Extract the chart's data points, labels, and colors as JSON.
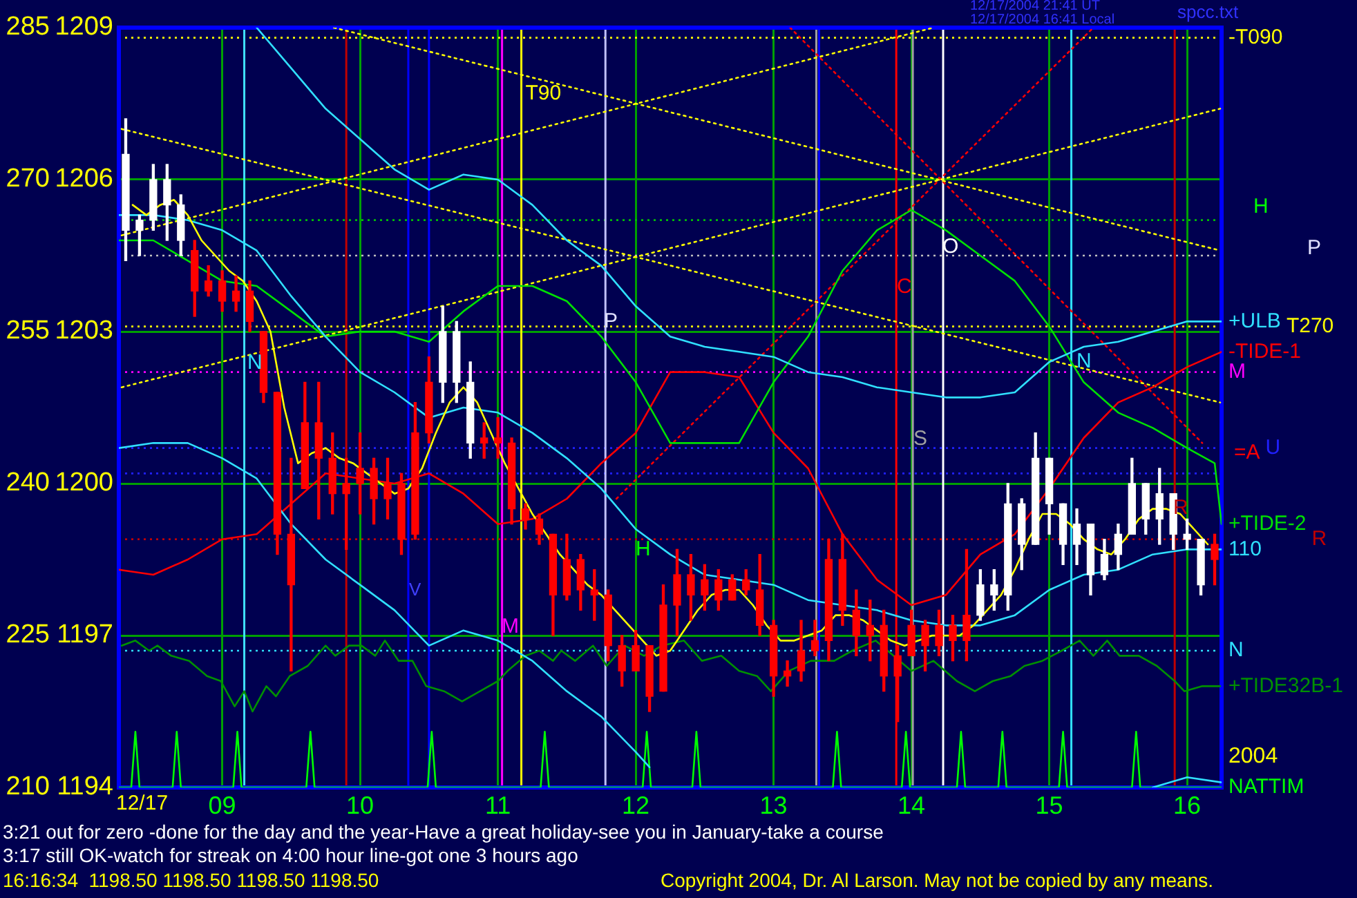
{
  "chart_data": {
    "type": "candlestick",
    "x": [
      8.3,
      8.4,
      8.5,
      8.6,
      8.7,
      8.8,
      8.9,
      9.0,
      9.1,
      9.2,
      9.3,
      9.4,
      9.5,
      9.6,
      9.7,
      9.8,
      9.9,
      10.0,
      10.1,
      10.2,
      10.3,
      10.4,
      10.5,
      10.6,
      10.7,
      10.8,
      10.9,
      11.0,
      11.1,
      11.2,
      11.3,
      11.4,
      11.5,
      11.6,
      11.7,
      11.8,
      11.9,
      12.0,
      12.1,
      12.2,
      12.3,
      12.4,
      12.5,
      12.6,
      12.7,
      12.8,
      12.9,
      13.0,
      13.1,
      13.2,
      13.3,
      13.4,
      13.5,
      13.6,
      13.7,
      13.8,
      13.9,
      14.0,
      14.1,
      14.2,
      14.3,
      14.4,
      14.5,
      14.6,
      14.7,
      14.8,
      14.9,
      15.0,
      15.1,
      15.2,
      15.3,
      15.4,
      15.5,
      15.6,
      15.7,
      15.8,
      15.9,
      16.0,
      16.1,
      16.2
    ],
    "ohlc": [
      [
        1205.0,
        1207.2,
        1204.4,
        1206.5
      ],
      [
        1205.0,
        1205.3,
        1204.5,
        1205.2
      ],
      [
        1205.2,
        1206.3,
        1205.0,
        1206.0
      ],
      [
        1205.5,
        1206.3,
        1204.8,
        1206.0
      ],
      [
        1204.8,
        1205.7,
        1204.5,
        1205.5
      ],
      [
        1204.6,
        1204.8,
        1203.3,
        1203.8
      ],
      [
        1204.0,
        1204.3,
        1203.7,
        1203.8
      ],
      [
        1204.0,
        1204.2,
        1203.4,
        1203.6
      ],
      [
        1203.8,
        1204.1,
        1203.4,
        1203.6
      ],
      [
        1203.8,
        1204.0,
        1203.0,
        1203.2
      ],
      [
        1203.0,
        1203.0,
        1201.6,
        1201.8
      ],
      [
        1201.8,
        1201.8,
        1198.6,
        1199.0
      ],
      [
        1199.0,
        1200.5,
        1196.3,
        1198.0
      ],
      [
        1201.2,
        1202.0,
        1199.9,
        1199.9
      ],
      [
        1201.2,
        1202.0,
        1199.3,
        1200.5
      ],
      [
        1200.5,
        1201.0,
        1199.4,
        1199.8
      ],
      [
        1200.0,
        1200.5,
        1198.7,
        1199.8
      ],
      [
        1200.3,
        1201.0,
        1199.4,
        1200.0
      ],
      [
        1200.3,
        1200.5,
        1199.2,
        1199.7
      ],
      [
        1200.0,
        1200.5,
        1199.3,
        1199.7
      ],
      [
        1200.0,
        1200.2,
        1198.6,
        1198.9
      ],
      [
        1201.0,
        1201.6,
        1198.9,
        1199.0
      ],
      [
        1202.0,
        1202.5,
        1200.8,
        1201.0
      ],
      [
        1202.0,
        1203.5,
        1201.6,
        1203.0
      ],
      [
        1202.0,
        1203.2,
        1201.6,
        1203.0
      ],
      [
        1200.8,
        1202.4,
        1200.5,
        1202.0
      ],
      [
        1200.9,
        1201.2,
        1200.5,
        1200.8
      ],
      [
        1200.9,
        1201.3,
        1200.5,
        1200.8
      ],
      [
        1200.8,
        1200.9,
        1199.2,
        1199.5
      ],
      [
        1199.5,
        1199.6,
        1199.1,
        1199.3
      ],
      [
        1199.3,
        1199.4,
        1198.8,
        1199.0
      ],
      [
        1199.0,
        1199.0,
        1197.0,
        1197.8
      ],
      [
        1198.5,
        1199.0,
        1197.7,
        1197.8
      ],
      [
        1198.5,
        1198.6,
        1197.5,
        1197.9
      ],
      [
        1197.9,
        1198.3,
        1197.3,
        1197.8
      ],
      [
        1197.8,
        1197.9,
        1196.5,
        1196.8
      ],
      [
        1196.8,
        1197.0,
        1196.0,
        1196.3
      ],
      [
        1196.8,
        1197.1,
        1196.3,
        1196.3
      ],
      [
        1196.8,
        1196.8,
        1195.5,
        1195.8
      ],
      [
        1197.6,
        1198.0,
        1195.9,
        1195.9
      ],
      [
        1198.2,
        1198.7,
        1197.0,
        1197.6
      ],
      [
        1198.2,
        1198.6,
        1197.3,
        1197.8
      ],
      [
        1198.1,
        1198.4,
        1197.5,
        1197.8
      ],
      [
        1198.1,
        1198.3,
        1197.5,
        1197.7
      ],
      [
        1198.1,
        1198.2,
        1197.7,
        1197.7
      ],
      [
        1198.1,
        1198.3,
        1197.8,
        1197.9
      ],
      [
        1197.9,
        1198.6,
        1197.0,
        1197.2
      ],
      [
        1197.2,
        1197.3,
        1195.8,
        1196.2
      ],
      [
        1196.3,
        1196.5,
        1196.0,
        1196.2
      ],
      [
        1196.7,
        1197.3,
        1196.1,
        1196.3
      ],
      [
        1196.9,
        1197.3,
        1196.6,
        1196.7
      ],
      [
        1198.5,
        1198.9,
        1196.5,
        1196.9
      ],
      [
        1198.5,
        1199.0,
        1197.2,
        1197.5
      ],
      [
        1197.5,
        1197.9,
        1196.6,
        1197.0
      ],
      [
        1197.2,
        1197.7,
        1196.5,
        1197.0
      ],
      [
        1197.2,
        1197.5,
        1195.9,
        1196.2
      ],
      [
        1196.6,
        1196.8,
        1195.3,
        1196.2
      ],
      [
        1197.2,
        1197.5,
        1196.6,
        1196.6
      ],
      [
        1197.2,
        1197.3,
        1196.3,
        1196.8
      ],
      [
        1197.2,
        1197.5,
        1196.6,
        1196.8
      ],
      [
        1197.2,
        1197.4,
        1196.5,
        1196.9
      ],
      [
        1197.4,
        1198.7,
        1196.5,
        1196.9
      ],
      [
        1197.4,
        1198.3,
        1197.3,
        1198.0
      ],
      [
        1197.8,
        1198.3,
        1197.5,
        1198.0
      ],
      [
        1197.8,
        1200.0,
        1197.5,
        1199.6
      ],
      [
        1198.8,
        1199.7,
        1198.3,
        1199.6
      ],
      [
        1198.8,
        1201.0,
        1198.8,
        1200.5
      ],
      [
        1199.6,
        1200.5,
        1199.0,
        1200.5
      ],
      [
        1198.8,
        1199.6,
        1198.4,
        1199.6
      ],
      [
        1198.8,
        1199.5,
        1198.4,
        1199.2
      ],
      [
        1198.2,
        1199.2,
        1197.8,
        1199.2
      ],
      [
        1198.2,
        1198.9,
        1198.1,
        1198.6
      ],
      [
        1198.6,
        1199.2,
        1198.3,
        1199.0
      ],
      [
        1199.0,
        1200.5,
        1199.0,
        1200.0
      ],
      [
        1199.3,
        1200.0,
        1199.0,
        1200.0
      ],
      [
        1199.3,
        1200.3,
        1198.8,
        1199.8
      ],
      [
        1199.0,
        1199.8,
        1198.7,
        1199.8
      ],
      [
        1198.9,
        1199.3,
        1198.7,
        1199.0
      ],
      [
        1198.0,
        1198.9,
        1197.8,
        1198.9
      ],
      [
        1198.8,
        1199.0,
        1198.0,
        1198.5
      ]
    ],
    "colors": [
      "#ffffff",
      "#ffffff",
      "#ffffff",
      "#ffffff",
      "#ffffff",
      "#ff0000",
      "#ff0000",
      "#ff0000",
      "#ff0000",
      "#ff0000",
      "#ff0000",
      "#ff0000",
      "#ff0000",
      "#ff0000",
      "#ff0000",
      "#ff0000",
      "#ff0000",
      "#ff0000",
      "#ff0000",
      "#ff0000",
      "#ff0000",
      "#ff0000",
      "#ff0000",
      "#ffffff",
      "#ffffff",
      "#ffffff",
      "#ff0000",
      "#ff0000",
      "#ff0000",
      "#ff0000",
      "#ff0000",
      "#ff0000",
      "#ff0000",
      "#ff0000",
      "#ff0000",
      "#ff0000",
      "#ff0000",
      "#ff0000",
      "#ff0000",
      "#ff0000",
      "#ff0000",
      "#ff0000",
      "#ff0000",
      "#ff0000",
      "#ff0000",
      "#ff0000",
      "#ff0000",
      "#ff0000",
      "#ff0000",
      "#ff0000",
      "#ff0000",
      "#ff0000",
      "#ff0000",
      "#ff0000",
      "#ff0000",
      "#ff0000",
      "#ff0000",
      "#ff0000",
      "#ff0000",
      "#ff0000",
      "#ff0000",
      "#ff0000",
      "#ffffff",
      "#ffffff",
      "#ffffff",
      "#ffffff",
      "#ffffff",
      "#ffffff",
      "#ffffff",
      "#ffffff",
      "#ffffff",
      "#ffffff",
      "#ffffff",
      "#ffffff",
      "#ffffff",
      "#ffffff",
      "#ffffff",
      "#ffffff",
      "#ffffff",
      "#ff0000"
    ],
    "series": [
      {
        "type": "line",
        "color": "#ffff00",
        "x": [
          8.35,
          8.45,
          8.55,
          8.65,
          8.75,
          8.85,
          8.95,
          9.05,
          9.15,
          9.25,
          9.35,
          9.45,
          9.55,
          9.65,
          9.75,
          9.85,
          9.95,
          10.05,
          10.15,
          10.25,
          10.35,
          10.45,
          10.55,
          10.65,
          10.75,
          10.85,
          10.95,
          11.05,
          11.15,
          11.25,
          11.35,
          11.45,
          11.55,
          11.65,
          11.75,
          11.85,
          11.95,
          12.05,
          12.15,
          12.25,
          12.35,
          12.45,
          12.55,
          12.65,
          12.75,
          12.85,
          12.95,
          13.05,
          13.15,
          13.25,
          13.35,
          13.45,
          13.55,
          13.65,
          13.75,
          13.85,
          13.95,
          14.05,
          14.15,
          14.25,
          14.35,
          14.45,
          14.55,
          14.65,
          14.75,
          14.85,
          14.95,
          15.05,
          15.15,
          15.25,
          15.35,
          15.45,
          15.55,
          15.65,
          15.75,
          15.85,
          15.95,
          16.05,
          16.15
        ],
        "values": [
          1205.5,
          1205.3,
          1205.5,
          1205.6,
          1205.3,
          1204.8,
          1204.5,
          1204.2,
          1204.0,
          1203.6,
          1203.0,
          1201.5,
          1200.4,
          1200.6,
          1200.7,
          1200.5,
          1200.4,
          1200.2,
          1200.0,
          1199.8,
          1199.9,
          1200.3,
          1201.0,
          1201.6,
          1201.9,
          1201.6,
          1201.0,
          1200.4,
          1199.9,
          1199.4,
          1199.0,
          1198.6,
          1198.3,
          1198.0,
          1197.8,
          1197.5,
          1197.2,
          1196.9,
          1196.6,
          1196.7,
          1197.1,
          1197.5,
          1197.8,
          1197.9,
          1197.9,
          1197.6,
          1197.2,
          1196.9,
          1196.9,
          1197.0,
          1197.1,
          1197.4,
          1197.4,
          1197.3,
          1197.1,
          1196.9,
          1196.8,
          1196.9,
          1197.0,
          1197.0,
          1197.0,
          1197.2,
          1197.5,
          1197.8,
          1198.3,
          1198.9,
          1199.4,
          1199.4,
          1199.2,
          1198.9,
          1198.7,
          1198.6,
          1198.9,
          1199.3,
          1199.5,
          1199.5,
          1199.4,
          1199.1,
          1198.8
        ]
      },
      {
        "type": "line",
        "name": "+ULB",
        "color": "#30e0ff",
        "x": [
          9.25,
          9.5,
          9.75,
          10.0,
          10.25,
          10.5,
          10.75,
          11.0,
          11.25,
          11.5,
          11.75,
          12.0,
          12.25,
          12.5,
          12.75,
          13.0,
          13.25,
          13.5,
          13.75,
          14.0,
          14.25,
          14.5,
          14.75,
          15.0,
          15.25,
          15.5,
          15.75,
          16.0,
          16.25
        ],
        "values": [
          1209.0,
          1208.2,
          1207.4,
          1206.8,
          1206.2,
          1205.8,
          1206.1,
          1206.0,
          1205.5,
          1204.8,
          1204.3,
          1203.5,
          1202.9,
          1202.7,
          1202.6,
          1202.5,
          1202.2,
          1202.1,
          1201.9,
          1201.8,
          1201.7,
          1201.7,
          1201.8,
          1202.4,
          1202.7,
          1202.8,
          1203.0,
          1203.2,
          1203.2
        ]
      },
      {
        "type": "line",
        "name": "110",
        "color": "#30e0ff",
        "x": [
          8.25,
          8.5,
          8.75,
          9.0,
          9.25,
          9.5,
          9.75,
          10.0,
          10.25,
          10.5,
          10.75,
          11.0,
          11.25,
          11.5,
          11.75,
          12.0,
          12.25,
          12.5,
          12.75,
          13.0,
          13.25,
          13.5,
          13.75,
          14.0,
          14.25,
          14.5,
          14.75,
          15.0,
          15.25,
          15.5,
          15.75,
          16.0,
          16.25
        ],
        "values": [
          1205.3,
          1205.3,
          1205.2,
          1205.0,
          1204.6,
          1203.7,
          1202.9,
          1202.2,
          1201.8,
          1201.3,
          1201.5,
          1201.4,
          1201.0,
          1200.5,
          1199.9,
          1199.1,
          1198.6,
          1198.2,
          1198.1,
          1198.0,
          1197.7,
          1197.6,
          1197.5,
          1197.3,
          1197.2,
          1197.2,
          1197.4,
          1197.9,
          1198.2,
          1198.3,
          1198.6,
          1198.7,
          1198.7
        ]
      },
      {
        "type": "line",
        "color": "#30e0ff",
        "x": [
          8.25,
          8.5,
          8.75,
          9.0,
          9.25,
          9.5,
          9.75,
          10.0,
          10.25,
          10.5,
          10.75,
          11.0,
          11.25,
          11.5,
          11.75,
          12.0,
          12.1,
          12.2,
          15.75,
          16.0,
          16.25
        ],
        "values": [
          1200.7,
          1200.8,
          1200.8,
          1200.5,
          1200.1,
          1199.2,
          1198.5,
          1198.0,
          1197.5,
          1196.8,
          1197.1,
          1196.9,
          1196.5,
          1195.9,
          1195.4,
          1194.7,
          1194.4,
          null,
          1194.0,
          1194.2,
          1194.1
        ]
      },
      {
        "type": "line",
        "name": "+TIDE-2",
        "color": "#00e000",
        "x": [
          8.25,
          8.5,
          8.75,
          9.0,
          9.25,
          9.5,
          9.75,
          10.0,
          10.25,
          10.5,
          10.75,
          11.0,
          11.25,
          11.5,
          11.75,
          12.0,
          12.25,
          12.5,
          12.75,
          13.0,
          13.25,
          13.5,
          13.75,
          14.0,
          14.25,
          14.5,
          14.75,
          15.0,
          15.25,
          15.5,
          15.75,
          16.0,
          16.2,
          16.25
        ],
        "values": [
          1204.8,
          1204.8,
          1204.4,
          1204.0,
          1203.9,
          1203.4,
          1202.9,
          1203.0,
          1203.0,
          1202.8,
          1203.4,
          1203.9,
          1203.9,
          1203.6,
          1202.9,
          1202.0,
          1200.8,
          1200.8,
          1200.8,
          1202.0,
          1202.9,
          1204.2,
          1205.0,
          1205.4,
          1205.0,
          1204.5,
          1204.0,
          1203.1,
          1202.0,
          1201.4,
          1201.1,
          1200.7,
          1200.4,
          1199.2
        ]
      },
      {
        "type": "line",
        "name": "-TIDE-1",
        "color": "#ff0000",
        "x": [
          8.25,
          8.5,
          8.75,
          9.0,
          9.25,
          9.5,
          9.75,
          10.0,
          10.25,
          10.5,
          10.75,
          11.0,
          11.25,
          11.5,
          11.75,
          12.0,
          12.25,
          12.5,
          12.75,
          13.0,
          13.25,
          13.5,
          13.75,
          14.0,
          14.25,
          14.5,
          14.75,
          15.0,
          15.25,
          15.5,
          15.75,
          16.0,
          16.25
        ],
        "values": [
          1198.3,
          1198.2,
          1198.5,
          1198.9,
          1199.0,
          1199.6,
          1200.2,
          1200.1,
          1200.0,
          1200.2,
          1199.8,
          1199.2,
          1199.3,
          1199.7,
          1200.4,
          1201.0,
          1202.2,
          1202.2,
          1202.1,
          1201.0,
          1200.3,
          1199.0,
          1198.1,
          1197.6,
          1197.8,
          1198.6,
          1199.0,
          1199.9,
          1200.9,
          1201.6,
          1201.9,
          1202.3,
          1202.6
        ]
      },
      {
        "type": "line",
        "name": "+TIDE32B-1",
        "color": "#009000",
        "x": [
          8.27,
          8.37,
          8.47,
          8.53,
          8.63,
          8.76,
          8.89,
          8.99,
          9.09,
          9.16,
          9.22,
          9.32,
          9.39,
          9.49,
          9.62,
          9.75,
          9.82,
          9.92,
          10.01,
          10.11,
          10.18,
          10.28,
          10.38,
          10.48,
          10.61,
          10.74,
          10.87,
          11.0,
          11.07,
          11.2,
          11.3,
          11.4,
          11.46,
          11.56,
          11.69,
          11.79,
          11.92,
          12.06,
          12.19,
          12.35,
          12.48,
          12.62,
          12.75,
          12.88,
          12.98,
          13.11,
          13.27,
          13.44,
          13.57,
          13.74,
          13.87,
          14.0,
          14.16,
          14.33,
          14.46,
          14.59,
          14.72,
          14.82,
          14.95,
          15.09,
          15.22,
          15.32,
          15.42,
          15.51,
          15.65,
          15.78,
          15.91,
          15.98,
          16.11,
          16.24
        ],
        "values": [
          1196.8,
          1196.9,
          1196.7,
          1196.8,
          1196.6,
          1196.5,
          1196.2,
          1196.1,
          1195.6,
          1195.9,
          1195.5,
          1196.0,
          1195.8,
          1196.2,
          1196.4,
          1196.8,
          1196.6,
          1196.8,
          1196.8,
          1196.6,
          1196.9,
          1196.5,
          1196.5,
          1196.0,
          1195.9,
          1195.7,
          1195.9,
          1196.1,
          1196.3,
          1196.6,
          1196.7,
          1196.5,
          1196.7,
          1196.5,
          1196.8,
          1196.4,
          1196.8,
          1196.6,
          1196.8,
          1196.9,
          1196.5,
          1196.6,
          1196.3,
          1196.2,
          1195.9,
          1196.3,
          1196.5,
          1196.5,
          1196.7,
          1196.9,
          1196.6,
          1196.3,
          1196.5,
          1196.1,
          1195.9,
          1196.1,
          1196.2,
          1196.4,
          1196.5,
          1196.7,
          1196.9,
          1196.6,
          1196.9,
          1196.6,
          1196.6,
          1196.4,
          1196.1,
          1195.9,
          1196.0,
          1196.0
        ]
      },
      {
        "type": "line",
        "name": "NATTIM",
        "color": "#00ff00",
        "x": [
          8.25,
          8.34,
          8.37,
          8.4,
          8.64,
          8.67,
          8.7,
          9.08,
          9.11,
          9.14,
          9.61,
          9.64,
          9.67,
          10.49,
          10.52,
          10.55,
          11.31,
          11.34,
          11.37,
          12.05,
          12.08,
          12.11,
          12.41,
          12.44,
          12.47,
          13.43,
          13.46,
          13.49,
          13.93,
          13.96,
          13.99,
          14.33,
          14.36,
          14.39,
          14.63,
          14.66,
          14.69,
          15.07,
          15.1,
          15.13,
          15.6,
          15.63,
          15.66,
          16.25
        ],
        "values": [
          1194,
          1194,
          1195.1,
          1194,
          1194,
          1195.1,
          1194,
          1194,
          1195.1,
          1194,
          1194,
          1195.1,
          1194,
          1194,
          1195.1,
          1194,
          1194,
          1195.1,
          1194,
          1194,
          1195.1,
          1194,
          1194,
          1195.1,
          1194,
          1194,
          1195.1,
          1194,
          1194,
          1195.1,
          1194,
          1194,
          1195.1,
          1194,
          1194,
          1195.1,
          1194,
          1194,
          1195.1,
          1194,
          1194,
          1195.1,
          1194,
          1194
        ]
      },
      {
        "type": "line",
        "color": "#ffff00",
        "line_style": "dotted",
        "x": [
          9.81,
          16.24
        ],
        "values": [
          1209.0,
          1204.6
        ]
      },
      {
        "type": "line",
        "color": "#ffff00",
        "line_style": "dotted",
        "x": [
          8.27,
          16.24
        ],
        "values": [
          1207.0,
          1201.6
        ]
      },
      {
        "type": "line",
        "color": "#ffff00",
        "line_style": "dotted",
        "x": [
          8.27,
          16.24
        ],
        "values": [
          1201.9,
          1207.4
        ]
      },
      {
        "type": "line",
        "color": "#ffff00",
        "line_style": "dotted",
        "x": [
          8.27,
          14.16
        ],
        "values": [
          1204.9,
          1209.0
        ]
      },
      {
        "type": "line",
        "color": "#ff0000",
        "line_style": "dotted",
        "x": [
          13.12,
          16.11
        ],
        "values": [
          1209.0,
          1200.8
        ]
      },
      {
        "type": "line",
        "color": "#ff0000",
        "line_style": "dotted",
        "x": [
          11.86,
          15.32
        ],
        "values": [
          1199.7,
          1209.0
        ]
      }
    ],
    "xlim": [
      8.25,
      16.25
    ],
    "xticks": [
      {
        "value": 9,
        "label": "09"
      },
      10,
      11,
      12,
      13,
      14,
      15,
      16
    ],
    "ylim": [
      1194,
      1209
    ],
    "yticks": [
      1194,
      1197,
      1200,
      1203,
      1206,
      1209
    ],
    "y2lim": [
      210,
      285
    ],
    "y2ticks": [
      210,
      225,
      240,
      255,
      270,
      285
    ],
    "grid": true,
    "marker": "none",
    "ref_lines": [
      {
        "axis": "y",
        "value": 1208.8,
        "label": "-T090",
        "color": "#ffff00",
        "line_style": "dotted"
      },
      {
        "axis": "y",
        "value": 1205.2,
        "color": "#00c000",
        "line_style": "dotted"
      },
      {
        "axis": "y",
        "value": 1204.5,
        "color": "#c0c0c0",
        "line_style": "dotted"
      },
      {
        "axis": "y",
        "value": 1203.1,
        "label": "T270",
        "color": "#ffff00",
        "line_style": "dotted"
      },
      {
        "axis": "y",
        "value": 1202.2,
        "label": "M",
        "color": "#ff00ff",
        "line_style": "dotted"
      },
      {
        "axis": "y",
        "value": 1200.7,
        "label": "U",
        "color": "#2020ff",
        "line_style": "dotted"
      },
      {
        "axis": "y",
        "value": 1200.2,
        "color": "#2020ff",
        "line_style": "dotted"
      },
      {
        "axis": "y",
        "value": 1198.9,
        "label": "R",
        "color": "#c00000",
        "line_style": "dotted"
      },
      {
        "axis": "y",
        "value": 1196.7,
        "label": "N",
        "color": "#30e0ff",
        "line_style": "dotted"
      },
      {
        "axis": "x",
        "value": 9.16,
        "color": "#40e0ff"
      },
      {
        "axis": "x",
        "value": 9.9,
        "color": "#c00000"
      },
      {
        "axis": "x",
        "value": 10.35,
        "color": "#0000ff"
      },
      {
        "axis": "x",
        "value": 10.5,
        "color": "#0000ff"
      },
      {
        "axis": "x",
        "value": 11.03,
        "color": "#ff00ff"
      },
      {
        "axis": "x",
        "value": 11.17,
        "label": "T90",
        "color": "#ffff00"
      },
      {
        "axis": "x",
        "value": 11.78,
        "color": "#c0c0ff"
      },
      {
        "axis": "x",
        "value": 13.31,
        "color": "#a0a0a0"
      },
      {
        "axis": "x",
        "value": 13.33,
        "color": "#0000ff"
      },
      {
        "axis": "x",
        "value": 13.89,
        "color": "#ff0000"
      },
      {
        "axis": "x",
        "value": 14.01,
        "color": "#a0a0a0"
      },
      {
        "axis": "x",
        "value": 14.23,
        "color": "#ffffff"
      },
      {
        "axis": "x",
        "value": 15.16,
        "color": "#30e0ff"
      },
      {
        "axis": "x",
        "value": 15.91,
        "color": "#c00000"
      }
    ],
    "annotations": [
      "N",
      "P",
      "V",
      "M",
      "H",
      "C",
      "O",
      "S",
      "N",
      "R",
      "H",
      "P",
      "=A",
      "3:21 out for zero -done for the day and the year-Have a great holiday-see you in January-take a course",
      "3:17 still OK-watch for streak on 4:00 hour line-got one 3 hours ago",
      "16:16:34  1198.50 1198.50 1198.50 1198.50",
      "Copyright 2004, Dr. Al Larson. May not be copied by any means.",
      "12/17/2004 21:41 UT",
      "12/17/2004 16:41 Local",
      "spcc.txt",
      "12/17",
      "2004"
    ]
  }
}
